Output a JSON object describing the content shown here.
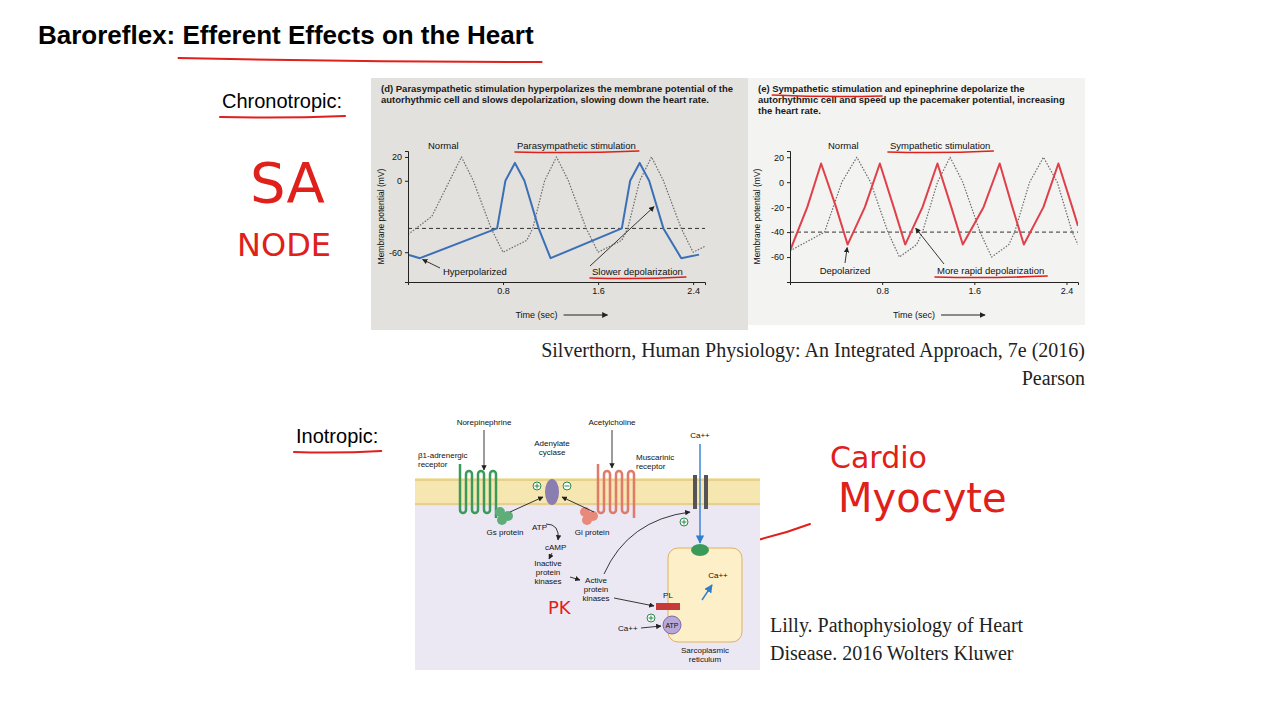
{
  "slide": {
    "title": "Baroreflex: Efferent Effects on the Heart",
    "chronotropic_label": "Chronotropic:",
    "inotropic_label": "Inotropic:",
    "handwritten": {
      "sa_node": [
        "SA",
        "NODE"
      ],
      "pk": "PK",
      "cardio_myocyte": [
        "Cardio",
        "Myocyte"
      ]
    },
    "citations": {
      "silverthorn": [
        "Silverthorn, Human Physiology: An Integrated Approach, 7e (2016)",
        "Pearson"
      ],
      "lilly": [
        "Lilly. Pathophysiology of Heart",
        "Disease. 2016 Wolters Kluwer"
      ]
    }
  },
  "chart_data": [
    {
      "type": "line",
      "title": "(d) Parasympathetic stimulation hyperpolarizes the membrane potential of the autorhythmic cell and slows depolarization, slowing down the heart rate.",
      "x_label": "Time (sec)",
      "y_label": "Membrane potential (mV)",
      "xlim": [
        0,
        2.5
      ],
      "xticks": [
        0.8,
        1.6,
        2.4
      ],
      "ylim": [
        -85,
        25
      ],
      "yticks": [
        20,
        0,
        -60
      ],
      "threshold": -40,
      "annotations": [
        "Hyperpolarized",
        "Slower depolarization"
      ],
      "series": [
        {
          "name": "Normal",
          "color": "#6a6a6a",
          "line_style": "dotted",
          "x": [
            0.0,
            0.2,
            0.35,
            0.45,
            0.55,
            0.7,
            0.8,
            1.0,
            1.05,
            1.15,
            1.25,
            1.35,
            1.5,
            1.6,
            1.8,
            1.85,
            1.95,
            2.05,
            2.15,
            2.3,
            2.4,
            2.5
          ],
          "values": [
            -45,
            -30,
            0,
            20,
            0,
            -40,
            -60,
            -50,
            -40,
            0,
            20,
            0,
            -40,
            -60,
            -50,
            -40,
            0,
            20,
            0,
            -40,
            -60,
            -55
          ]
        },
        {
          "name": "Parasympathetic stimulation",
          "color": "#3b6fb6",
          "line_style": "solid",
          "x": [
            0.0,
            0.1,
            0.75,
            0.82,
            0.9,
            0.98,
            1.1,
            1.2,
            1.8,
            1.87,
            1.95,
            2.03,
            2.15,
            2.3,
            2.45
          ],
          "values": [
            -62,
            -65,
            -40,
            0,
            15,
            0,
            -40,
            -65,
            -40,
            0,
            15,
            0,
            -40,
            -65,
            -62
          ]
        }
      ]
    },
    {
      "type": "line",
      "title": "(e) Sympathetic stimulation and epinephrine depolarize the autorhythmic cell and speed up the pacemaker potential, increasing the heart rate.",
      "x_label": "Time (sec)",
      "y_label": "Membrane potential (mV)",
      "xlim": [
        0,
        2.5
      ],
      "xticks": [
        0.8,
        1.6,
        2.4
      ],
      "ylim": [
        -80,
        25
      ],
      "yticks": [
        20,
        0,
        -20,
        -40,
        -60
      ],
      "threshold": -40,
      "annotations": [
        "Depolarized",
        "More rapid depolarization"
      ],
      "series": [
        {
          "name": "Normal",
          "color": "#6a6a6a",
          "line_style": "dotted",
          "x": [
            0.0,
            0.3,
            0.45,
            0.58,
            0.7,
            0.85,
            0.95,
            1.1,
            1.15,
            1.28,
            1.39,
            1.5,
            1.65,
            1.75,
            1.9,
            1.95,
            2.08,
            2.2,
            2.32,
            2.45,
            2.5
          ],
          "values": [
            -55,
            -40,
            0,
            20,
            0,
            -40,
            -60,
            -50,
            -40,
            0,
            20,
            0,
            -40,
            -60,
            -50,
            -40,
            0,
            20,
            0,
            -40,
            -50
          ]
        },
        {
          "name": "Sympathetic stimulation",
          "color": "#e0404a",
          "line_style": "solid",
          "x": [
            0.0,
            0.15,
            0.27,
            0.4,
            0.5,
            0.65,
            0.78,
            0.9,
            1.0,
            1.15,
            1.28,
            1.4,
            1.5,
            1.68,
            1.82,
            1.93,
            2.03,
            2.2,
            2.33,
            2.45,
            2.5
          ],
          "values": [
            -55,
            -20,
            15,
            -20,
            -50,
            -20,
            15,
            -20,
            -50,
            -20,
            15,
            -20,
            -50,
            -20,
            15,
            -20,
            -50,
            -20,
            15,
            -20,
            -35
          ]
        }
      ]
    }
  ],
  "diagram": {
    "labels": {
      "norepinephrine": "Norepinephrine",
      "acetylcholine": "Acetylcholine",
      "beta_receptor": "β1-adrenergic receptor",
      "adenylate_cyclase": "Adenylate cyclase",
      "muscarinic_receptor": "Muscarinic receptor",
      "gs_protein": "Gs protein",
      "gi_protein": "Gi protein",
      "atp_1": "ATP",
      "camp": "cAMP",
      "inactive_kinases": "Inactive protein kinases",
      "active_kinases": "Active protein kinases",
      "ca_outside": "Ca++",
      "ca_sr": "Ca++",
      "pl": "PL",
      "ca_cytosol": "Ca++",
      "atp_2": "ATP",
      "sr": "Sarcoplasmic reticulum"
    }
  }
}
